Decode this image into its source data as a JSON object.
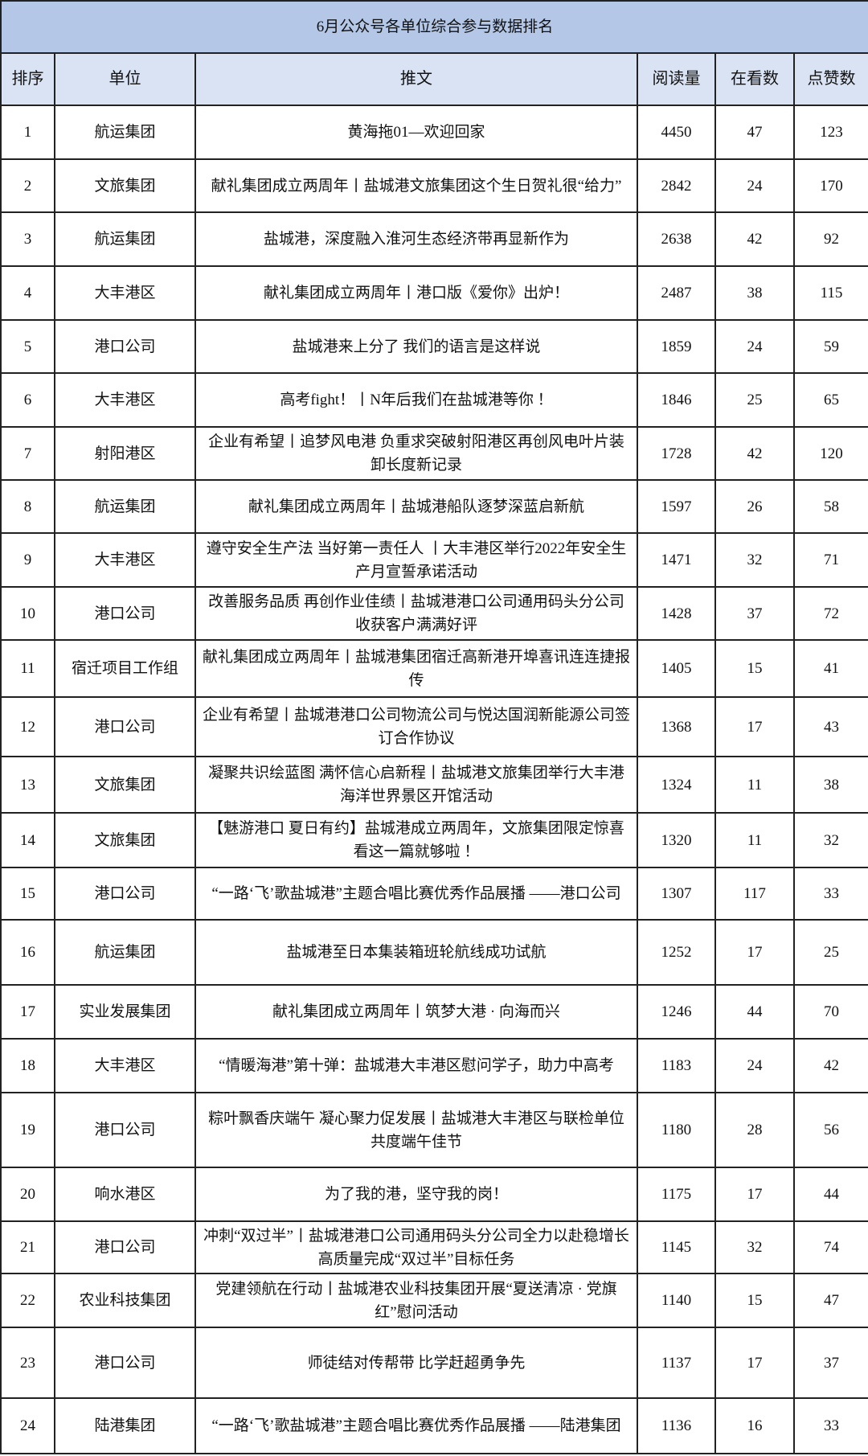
{
  "title": "6月公众号各单位综合参与数据排名",
  "columns": [
    "排序",
    "单位",
    "推文",
    "阅读量",
    "在看数",
    "点赞数"
  ],
  "colors": {
    "title_bg": "#b4c7e7",
    "header_bg": "#dae3f3",
    "border": "#222222"
  },
  "rows": [
    {
      "rank": "1",
      "unit": "航运集团",
      "post": "黄海拖01—欢迎回家",
      "reads": "4450",
      "watching": "47",
      "likes": "123"
    },
    {
      "rank": "2",
      "unit": "文旅集团",
      "post": "献礼集团成立两周年丨盐城港文旅集团这个生日贺礼很“给力”",
      "reads": "2842",
      "watching": "24",
      "likes": "170"
    },
    {
      "rank": "3",
      "unit": "航运集团",
      "post": "盐城港，深度融入淮河生态经济带再显新作为",
      "reads": "2638",
      "watching": "42",
      "likes": "92"
    },
    {
      "rank": "4",
      "unit": "大丰港区",
      "post": "献礼集团成立两周年丨港口版《爱你》出炉！",
      "reads": "2487",
      "watching": "38",
      "likes": "115"
    },
    {
      "rank": "5",
      "unit": "港口公司",
      "post": "盐城港来上分了 我们的语言是这样说",
      "reads": "1859",
      "watching": "24",
      "likes": "59"
    },
    {
      "rank": "6",
      "unit": "大丰港区",
      "post": "高考fight！丨N年后我们在盐城港等你 ！",
      "reads": "1846",
      "watching": "25",
      "likes": "65"
    },
    {
      "rank": "7",
      "unit": "射阳港区",
      "post": "企业有希望丨追梦风电港 负重求突破射阳港区再创风电叶片装卸长度新记录",
      "reads": "1728",
      "watching": "42",
      "likes": "120"
    },
    {
      "rank": "8",
      "unit": "航运集团",
      "post": "献礼集团成立两周年丨盐城港船队逐梦深蓝启新航",
      "reads": "1597",
      "watching": "26",
      "likes": "58"
    },
    {
      "rank": "9",
      "unit": "大丰港区",
      "post": "遵守安全生产法 当好第一责任人 丨大丰港区举行2022年安全生产月宣誓承诺活动",
      "reads": "1471",
      "watching": "32",
      "likes": "71"
    },
    {
      "rank": "10",
      "unit": "港口公司",
      "post": "改善服务品质 再创作业佳绩丨盐城港港口公司通用码头分公司收获客户满满好评",
      "reads": "1428",
      "watching": "37",
      "likes": "72"
    },
    {
      "rank": "11",
      "unit": "宿迁项目工作组",
      "post": "献礼集团成立两周年丨盐城港集团宿迁高新港开埠喜讯连连捷报传",
      "reads": "1405",
      "watching": "15",
      "likes": "41"
    },
    {
      "rank": "12",
      "unit": "港口公司",
      "post": "企业有希望丨盐城港港口公司物流公司与悦达国润新能源公司签订合作协议",
      "reads": "1368",
      "watching": "17",
      "likes": "43"
    },
    {
      "rank": "13",
      "unit": "文旅集团",
      "post": "凝聚共识绘蓝图  满怀信心启新程丨盐城港文旅集团举行大丰港海洋世界景区开馆活动",
      "reads": "1324",
      "watching": "11",
      "likes": "38"
    },
    {
      "rank": "14",
      "unit": "文旅集团",
      "post": "【魅游港口 夏日有约】盐城港成立两周年，文旅集团限定惊喜看这一篇就够啦 ！",
      "reads": "1320",
      "watching": "11",
      "likes": "32"
    },
    {
      "rank": "15",
      "unit": "港口公司",
      "post": "“一路‘飞’歌盐城港”主题合唱比赛优秀作品展播 ——港口公司",
      "reads": "1307",
      "watching": "117",
      "likes": "33"
    },
    {
      "rank": "16",
      "unit": "航运集团",
      "post": "盐城港至日本集装箱班轮航线成功试航",
      "reads": "1252",
      "watching": "17",
      "likes": "25"
    },
    {
      "rank": "17",
      "unit": "实业发展集团",
      "post": "献礼集团成立两周年丨筑梦大港 · 向海而兴",
      "reads": "1246",
      "watching": "44",
      "likes": "70"
    },
    {
      "rank": "18",
      "unit": "大丰港区",
      "post": "“情暖海港”第十弹：盐城港大丰港区慰问学子，助力中高考",
      "reads": "1183",
      "watching": "24",
      "likes": "42"
    },
    {
      "rank": "19",
      "unit": "港口公司",
      "post": "粽叶飘香庆端午 凝心聚力促发展丨盐城港大丰港区与联检单位共度端午佳节",
      "reads": "1180",
      "watching": "28",
      "likes": "56"
    },
    {
      "rank": "20",
      "unit": "响水港区",
      "post": "为了我的港，坚守我的岗！",
      "reads": "1175",
      "watching": "17",
      "likes": "44"
    },
    {
      "rank": "21",
      "unit": "港口公司",
      "post": "冲刺“双过半”丨盐城港港口公司通用码头分公司全力以赴稳增长 高质量完成“双过半”目标任务",
      "reads": "1145",
      "watching": "32",
      "likes": "74"
    },
    {
      "rank": "22",
      "unit": "农业科技集团",
      "post": "党建领航在行动丨盐城港农业科技集团开展“夏送清凉 · 党旗红”慰问活动",
      "reads": "1140",
      "watching": "15",
      "likes": "47"
    },
    {
      "rank": "23",
      "unit": "港口公司",
      "post": "师徒结对传帮带 比学赶超勇争先",
      "reads": "1137",
      "watching": "17",
      "likes": "37"
    },
    {
      "rank": "24",
      "unit": "陆港集团",
      "post": "“一路‘飞’歌盐城港”主题合唱比赛优秀作品展播 ——陆港集团",
      "reads": "1136",
      "watching": "16",
      "likes": "33"
    }
  ]
}
